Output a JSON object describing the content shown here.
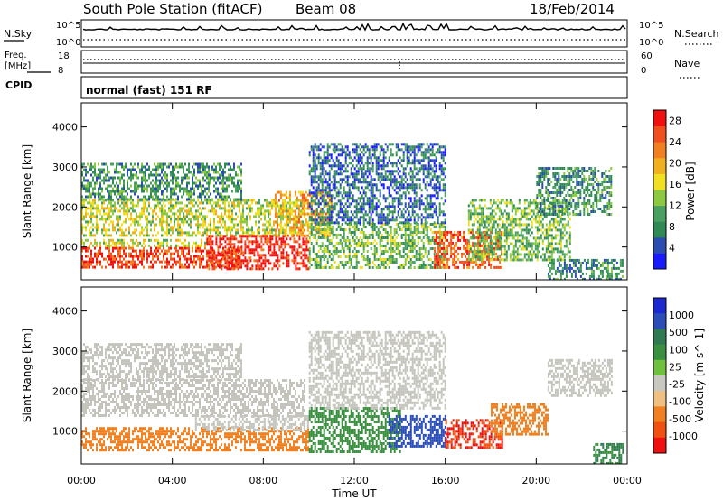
{
  "header": {
    "station": "South Pole Station (fitACF)",
    "beam": "Beam 08",
    "date": "18/Feb/2014"
  },
  "summary_panel": {
    "nsky_label": "N.Sky",
    "nsky_ticks": [
      "10^5",
      "10^0"
    ],
    "nsearch_label": "N.Search",
    "nsearch_ticks": [
      "10^5",
      "10^0"
    ],
    "freq_label": "Freq.",
    "freq_unit": "[MHz]",
    "freq_ticks": [
      "18",
      "8"
    ],
    "nave_label": "Nave",
    "nave_ticks": [
      "60",
      "0"
    ],
    "cpid_label": "CPID",
    "cpid_value": "normal (fast) 151 RF"
  },
  "colors": {
    "power": [
      "#1a1aff",
      "#2a4db0",
      "#2f8a55",
      "#4aa060",
      "#8cc840",
      "#f0e020",
      "#f0b020",
      "#f08020",
      "#f05020",
      "#f01010"
    ],
    "velocity": [
      "#1a2ad0",
      "#2a4db8",
      "#2f7a50",
      "#3a9040",
      "#70c040",
      "#c8c8c0",
      "#f0c080",
      "#f08020",
      "#f05010",
      "#f01010"
    ],
    "gray_plasma": "#c4c4bc"
  },
  "chart_data": [
    {
      "type": "heatmap",
      "name": "power",
      "xlabel": "",
      "ylabel": "Slant Range [km]",
      "xlim": [
        0,
        24
      ],
      "ylim": [
        180,
        4600
      ],
      "yticks": [
        "1000",
        "2000",
        "3000",
        "4000"
      ],
      "colorbar_label": "Power [dB]",
      "colorbar_ticks": [
        "4",
        "8",
        "12",
        "16",
        "20",
        "24",
        "28"
      ],
      "colorbar_range": [
        0,
        30
      ],
      "regions": [
        {
          "t0": 0.0,
          "t1": 7.0,
          "r0": 500,
          "r1": 1000,
          "v": 26
        },
        {
          "t0": 0.0,
          "t1": 5.5,
          "r0": 1000,
          "r1": 1200,
          "v": 16
        },
        {
          "t0": 0.0,
          "t1": 9.8,
          "r0": 1300,
          "r1": 2200,
          "v": 15
        },
        {
          "t0": 0.0,
          "t1": 7.0,
          "r0": 2200,
          "r1": 3100,
          "v": 9
        },
        {
          "t0": 5.5,
          "t1": 10.0,
          "r0": 450,
          "r1": 1300,
          "v": 28
        },
        {
          "t0": 8.5,
          "t1": 11.0,
          "r0": 1300,
          "r1": 2400,
          "v": 20
        },
        {
          "t0": 10.0,
          "t1": 16.0,
          "r0": 450,
          "r1": 1600,
          "v": 12
        },
        {
          "t0": 10.0,
          "t1": 16.0,
          "r0": 1600,
          "r1": 3600,
          "v": 6
        },
        {
          "t0": 15.5,
          "t1": 18.5,
          "r0": 500,
          "r1": 1400,
          "v": 25
        },
        {
          "t0": 17.0,
          "t1": 21.5,
          "r0": 700,
          "r1": 2200,
          "v": 12
        },
        {
          "t0": 20.0,
          "t1": 23.3,
          "r0": 1800,
          "r1": 3000,
          "v": 9
        },
        {
          "t0": 20.5,
          "t1": 23.8,
          "r0": 200,
          "r1": 700,
          "v": 8
        }
      ]
    },
    {
      "type": "heatmap",
      "name": "velocity",
      "xlabel": "Time UT",
      "ylabel": "Slant Range [km]",
      "xlim": [
        0,
        24
      ],
      "ylim": [
        180,
        4600
      ],
      "xticks": [
        "00:00",
        "04:00",
        "08:00",
        "12:00",
        "16:00",
        "20:00",
        "00:00"
      ],
      "yticks": [
        "1000",
        "2000",
        "3000",
        "4000"
      ],
      "colorbar_label": "Velocity [m s^-1]",
      "colorbar_ticks": [
        "1000",
        "500",
        "100",
        "25",
        "-25",
        "-100",
        "-500",
        "-1000"
      ],
      "regions": [
        {
          "t0": 0.0,
          "t1": 10.0,
          "r0": 500,
          "r1": 1100,
          "v": -300
        },
        {
          "t0": 0.0,
          "t1": 9.8,
          "r0": 1400,
          "r1": 2300,
          "v": 0
        },
        {
          "t0": 5.0,
          "t1": 10.0,
          "r0": 1000,
          "r1": 1400,
          "v": 0
        },
        {
          "t0": 0.0,
          "t1": 7.0,
          "r0": 2300,
          "r1": 3200,
          "v": 0
        },
        {
          "t0": 10.0,
          "t1": 14.0,
          "r0": 500,
          "r1": 1600,
          "v": 150
        },
        {
          "t0": 10.0,
          "t1": 16.0,
          "r0": 1600,
          "r1": 3500,
          "v": 0
        },
        {
          "t0": 13.5,
          "t1": 16.0,
          "r0": 600,
          "r1": 1400,
          "v": 900
        },
        {
          "t0": 16.0,
          "t1": 18.5,
          "r0": 600,
          "r1": 1300,
          "v": -1000
        },
        {
          "t0": 18.0,
          "t1": 20.5,
          "r0": 900,
          "r1": 1700,
          "v": -400
        },
        {
          "t0": 20.5,
          "t1": 23.3,
          "r0": 1900,
          "r1": 2800,
          "v": 0
        },
        {
          "t0": 22.5,
          "t1": 23.8,
          "r0": 200,
          "r1": 700,
          "v": 300
        }
      ]
    }
  ]
}
